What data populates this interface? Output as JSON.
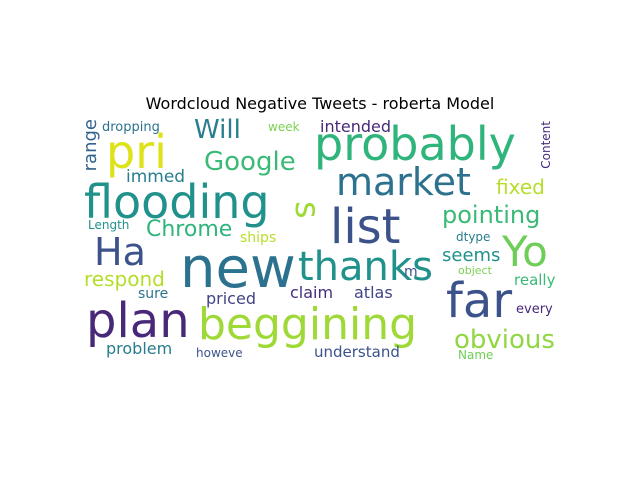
{
  "title": "Wordcloud Negative Tweets - roberta Model",
  "words": {
    "new": "new",
    "beggining": "beggining",
    "plan": "plan",
    "list": "list",
    "far": "far",
    "probably": "probably",
    "flooding": "flooding",
    "market": "market",
    "thanks": "thanks",
    "yo": "Yo",
    "ha": "Ha",
    "pri": "pri",
    "s": "s",
    "google": "Google",
    "will": "Will",
    "chrome": "Chrome",
    "pointing": "pointing",
    "obvious": "obvious",
    "fixed": "fixed",
    "respond": "respond",
    "seems": "seems",
    "range": "range",
    "immed": "immed",
    "intended": "intended",
    "claim": "claim",
    "atlas": "atlas",
    "priced": "priced",
    "problem": "problem",
    "understand": "understand",
    "dropping": "dropping",
    "week": "week",
    "content": "Content",
    "length": "Length",
    "ships": "ships",
    "dtype": "dtype",
    "m": "m",
    "sure": "sure",
    "really": "really",
    "object": "object",
    "every": "every",
    "howeve": "howeve",
    "name": "Name"
  }
}
